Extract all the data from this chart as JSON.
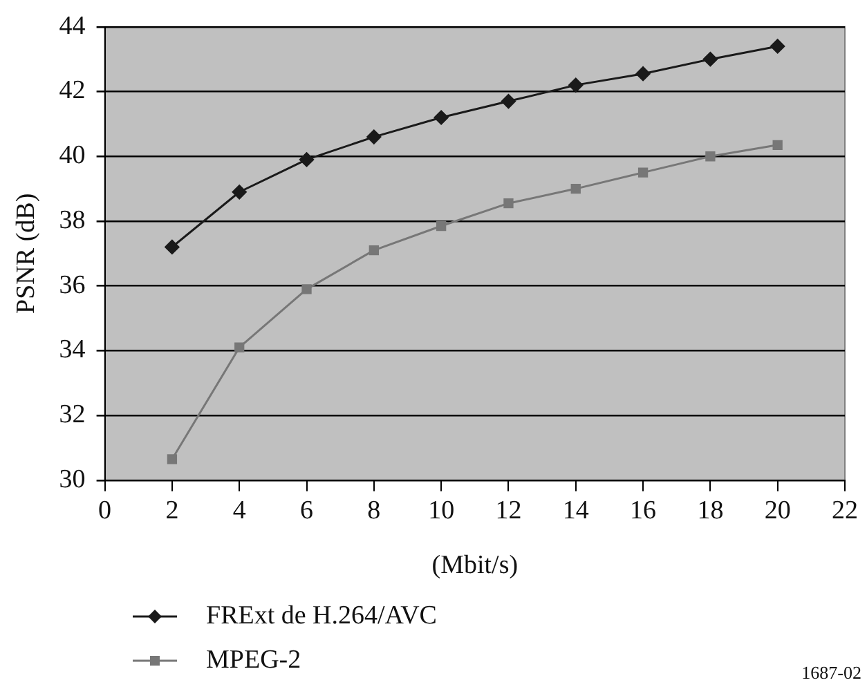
{
  "chart_data": {
    "type": "line",
    "ylabel": "PSNR (dB)",
    "xlabel": "(Mbit/s)",
    "x": [
      2,
      4,
      6,
      8,
      10,
      12,
      14,
      16,
      18,
      20
    ],
    "series": [
      {
        "name": "FRExt de H.264/AVC",
        "color": "#1a1a1a",
        "marker": "diamond",
        "values": [
          37.2,
          38.9,
          39.9,
          40.6,
          41.2,
          41.7,
          42.2,
          42.55,
          43.0,
          43.4
        ]
      },
      {
        "name": "MPEG-2",
        "color": "#777777",
        "marker": "square",
        "values": [
          30.65,
          34.1,
          35.9,
          37.1,
          37.85,
          38.55,
          39.0,
          39.5,
          40.0,
          40.35
        ]
      }
    ],
    "xlim": [
      0,
      22
    ],
    "xticks": [
      0,
      2,
      4,
      6,
      8,
      10,
      12,
      14,
      16,
      18,
      20,
      22
    ],
    "ylim": [
      30,
      44
    ],
    "yticks": [
      30,
      32,
      34,
      36,
      38,
      40,
      42,
      44
    ],
    "grid": "y",
    "legend": "bottom",
    "line_style": "solid",
    "annotations": [
      "1687-02"
    ]
  }
}
